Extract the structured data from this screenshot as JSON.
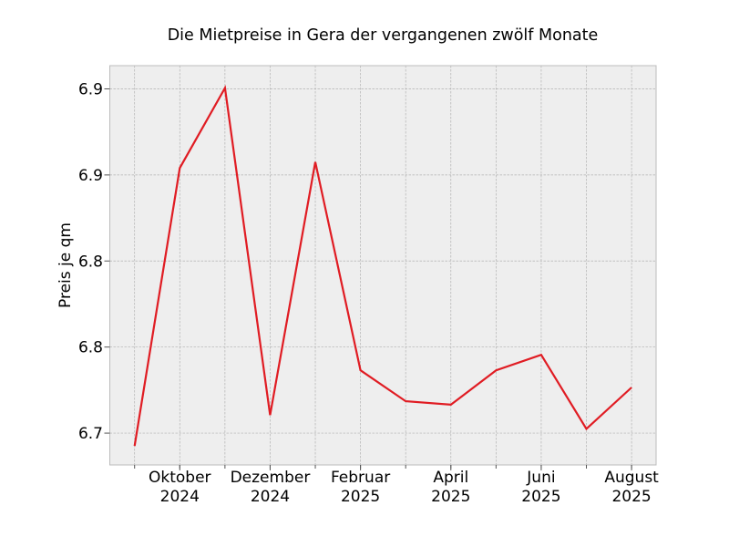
{
  "chart_data": {
    "type": "line",
    "title": "Die Mietpreise in Gera der vergangenen zwölf Monate",
    "xlabel": "",
    "ylabel": "Preis je qm",
    "x": [
      "2024-09",
      "2024-10",
      "2024-11",
      "2024-12",
      "2025-01",
      "2025-02",
      "2025-03",
      "2025-04",
      "2025-05",
      "2025-06",
      "2025-07",
      "2025-08"
    ],
    "x_tick_labels": [
      {
        "month": "2024-10",
        "line1": "Oktober",
        "line2": "2024"
      },
      {
        "month": "2024-12",
        "line1": "Dezember",
        "line2": "2024"
      },
      {
        "month": "2025-02",
        "line1": "Februar",
        "line2": "2025"
      },
      {
        "month": "2025-04",
        "line1": "April",
        "line2": "2025"
      },
      {
        "month": "2025-06",
        "line1": "Juni",
        "line2": "2025"
      },
      {
        "month": "2025-08",
        "line1": "August",
        "line2": "2025"
      }
    ],
    "y_ticks": [
      {
        "value": 6.7,
        "label": "6.7"
      },
      {
        "value": 6.75,
        "label": "6.8"
      },
      {
        "value": 6.8,
        "label": "6.8"
      },
      {
        "value": 6.85,
        "label": "6.9"
      },
      {
        "value": 6.9,
        "label": "6.9"
      }
    ],
    "ylim": [
      6.6815,
      6.9135
    ],
    "series": [
      {
        "values": [
          6.6925,
          6.854,
          6.9005,
          6.7105,
          6.8575,
          6.7365,
          6.7185,
          6.7165,
          6.7365,
          6.7455,
          6.7025,
          6.7265
        ],
        "color": "#e01c23"
      }
    ],
    "grid": true,
    "background": "#eeeeee",
    "legend": "none"
  }
}
